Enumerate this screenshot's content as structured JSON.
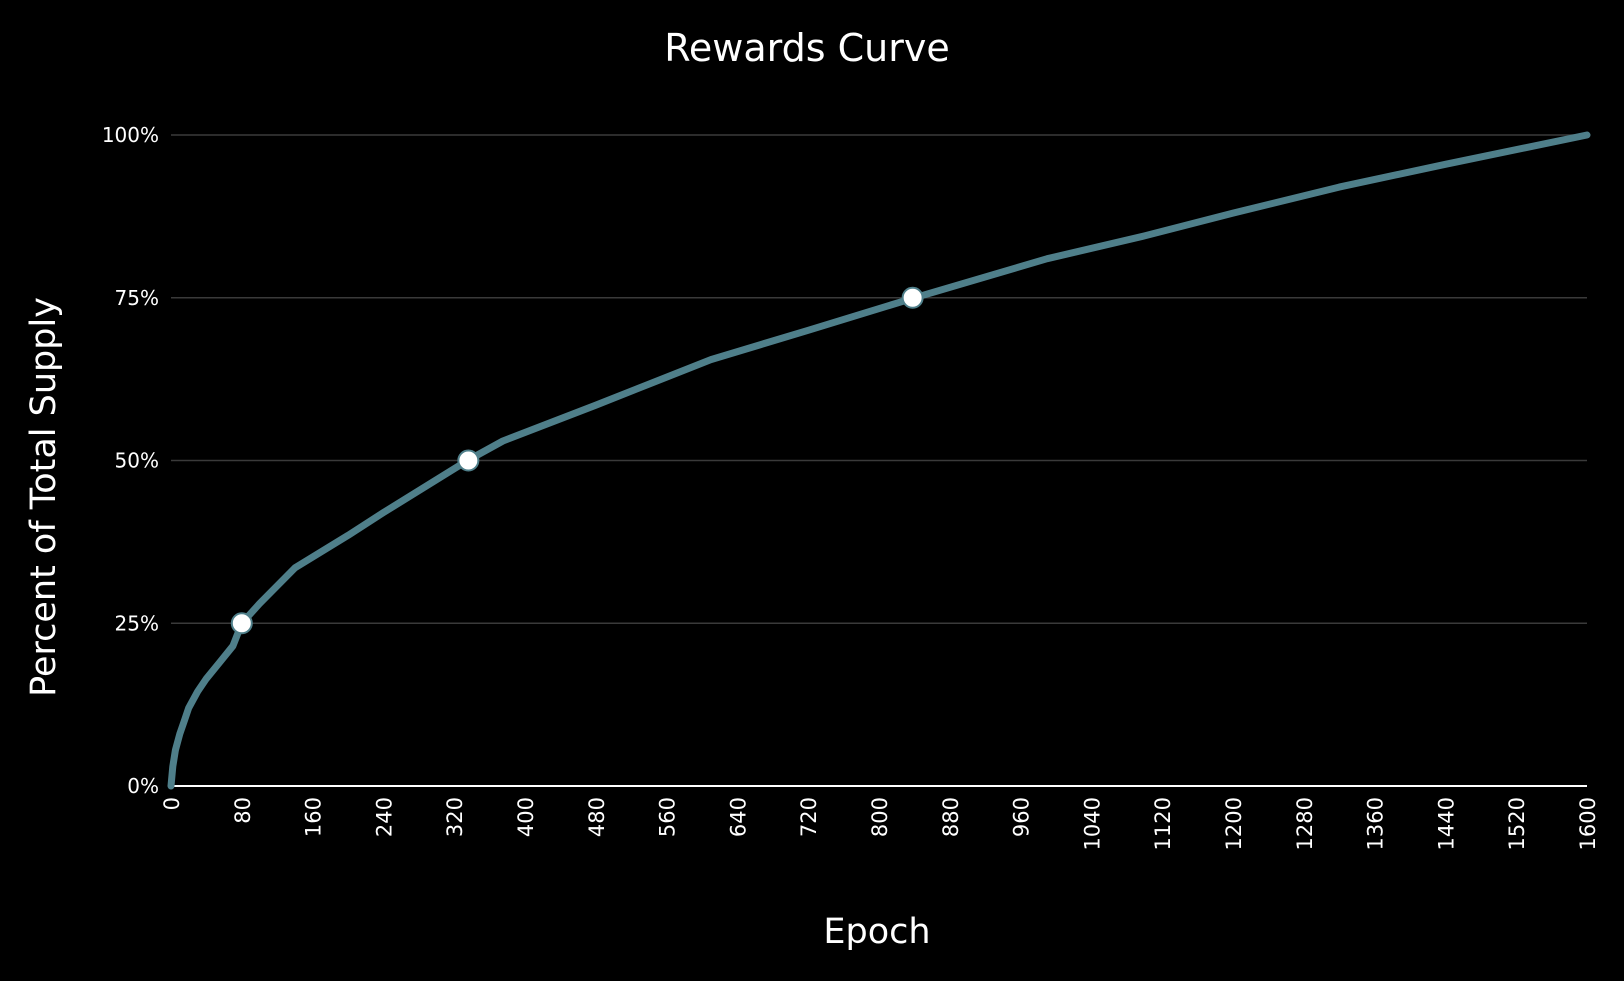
{
  "chart_data": {
    "type": "line",
    "title": "Rewards Curve",
    "xlabel": "Epoch",
    "ylabel": "Percent of Total Supply",
    "xlim": [
      0,
      1600
    ],
    "ylim": [
      0,
      100
    ],
    "x_ticks": [
      0,
      80,
      160,
      240,
      320,
      400,
      480,
      560,
      640,
      720,
      800,
      880,
      960,
      1040,
      1120,
      1200,
      1280,
      1360,
      1440,
      1520,
      1600
    ],
    "y_ticks": [
      0,
      25,
      50,
      75,
      100
    ],
    "y_tick_labels": [
      "0%",
      "25%",
      "50%",
      "75%",
      "100%"
    ],
    "grid": "horizontal",
    "series": [
      {
        "color": "#4f7f8a",
        "points": [
          [
            0,
            0
          ],
          [
            2,
            3
          ],
          [
            5,
            5.5
          ],
          [
            10,
            8
          ],
          [
            15,
            10
          ],
          [
            20,
            12
          ],
          [
            30,
            14.5
          ],
          [
            40,
            16.5
          ],
          [
            55,
            19
          ],
          [
            70,
            21.5
          ],
          [
            80,
            25
          ],
          [
            100,
            28
          ],
          [
            140,
            33.5
          ],
          [
            200,
            38.5
          ],
          [
            240,
            42
          ],
          [
            335,
            50
          ],
          [
            375,
            53
          ],
          [
            480,
            58.5
          ],
          [
            610,
            65.5
          ],
          [
            720,
            70
          ],
          [
            840,
            75
          ],
          [
            990,
            81
          ],
          [
            1100,
            84.5
          ],
          [
            1200,
            88
          ],
          [
            1320,
            92
          ],
          [
            1440,
            95.5
          ],
          [
            1600,
            100
          ]
        ]
      }
    ],
    "markers": [
      {
        "x": 80,
        "y": 25
      },
      {
        "x": 336,
        "y": 50
      },
      {
        "x": 838,
        "y": 75
      }
    ],
    "colors": {
      "background": "#000000",
      "line": "#4f7f8a",
      "grid": "#3a3a3a",
      "axis": "#ffffff",
      "text": "#ffffff",
      "marker_fill": "#ffffff"
    }
  }
}
